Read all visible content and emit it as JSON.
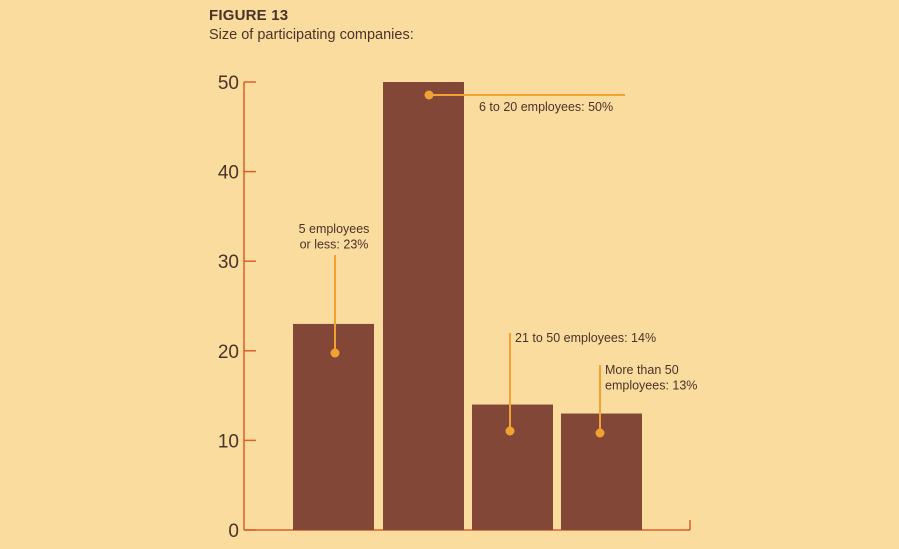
{
  "figure": {
    "label": "FIGURE 13",
    "subtitle": "Size of participating companies:"
  },
  "colors": {
    "background": "#fbdc9f",
    "bar": "#834737",
    "axis": "#d85f2a",
    "callout": "#f0a232",
    "text": "#4a3328"
  },
  "chart_data": {
    "type": "bar",
    "title": "Size of participating companies:",
    "xlabel": "",
    "ylabel": "",
    "ylim": [
      0,
      50
    ],
    "yticks": [
      0,
      10,
      20,
      30,
      40,
      50
    ],
    "grid": false,
    "categories": [
      "5 employees or less",
      "6 to 20 employees",
      "21 to 50 employees",
      "More than 50 employees"
    ],
    "values": [
      23,
      50,
      14,
      13
    ],
    "annotations": [
      {
        "lines": [
          "5 employees",
          "or less: 23%"
        ]
      },
      {
        "lines": [
          "6 to 20 employees: 50%"
        ]
      },
      {
        "lines": [
          "21 to 50 employees: 14%"
        ]
      },
      {
        "lines": [
          "More than 50",
          "employees: 13%"
        ]
      }
    ]
  }
}
